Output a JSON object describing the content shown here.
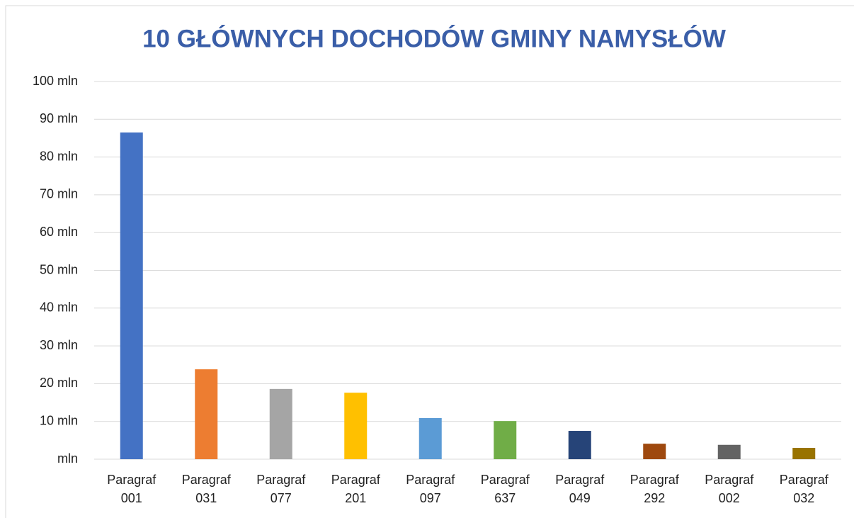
{
  "chart_data": {
    "type": "bar",
    "title": "10 GŁÓWNYCH DOCHODÓW GMINY NAMYSŁÓW",
    "categories": [
      "Paragraf 001",
      "Paragraf 031",
      "Paragraf 077",
      "Paragraf 201",
      "Paragraf 097",
      "Paragraf 637",
      "Paragraf 049",
      "Paragraf 292",
      "Paragraf 002",
      "Paragraf 032"
    ],
    "values": [
      86.5,
      23.8,
      18.6,
      17.6,
      10.9,
      10.1,
      7.5,
      4.1,
      3.8,
      3.0
    ],
    "colors": [
      "#4472c4",
      "#ed7d31",
      "#a5a5a5",
      "#ffc000",
      "#5b9bd5",
      "#70ad47",
      "#264478",
      "#9e480e",
      "#636363",
      "#997300"
    ],
    "ylim": [
      0,
      100
    ],
    "yticks": [
      {
        "value": 0,
        "label": "mln"
      },
      {
        "value": 10,
        "label": "10 mln"
      },
      {
        "value": 20,
        "label": "20 mln"
      },
      {
        "value": 30,
        "label": "30 mln"
      },
      {
        "value": 40,
        "label": "40 mln"
      },
      {
        "value": 50,
        "label": "50 mln"
      },
      {
        "value": 60,
        "label": "60 mln"
      },
      {
        "value": 70,
        "label": "70 mln"
      },
      {
        "value": 80,
        "label": "80 mln"
      },
      {
        "value": 90,
        "label": "90 mln"
      },
      {
        "value": 100,
        "label": "100 mln"
      }
    ],
    "grid": true
  }
}
